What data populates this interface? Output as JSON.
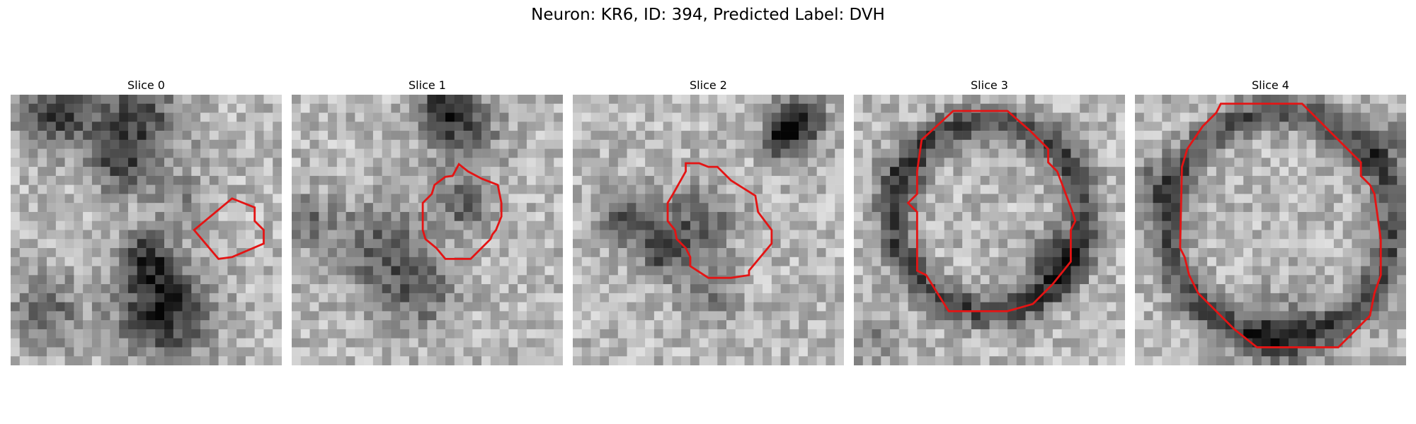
{
  "figure": {
    "title": "Neuron: KR6, ID: 394, Predicted Label: DVH"
  },
  "panels": [
    {
      "title": "Slice 0",
      "contour_color": "#e41414"
    },
    {
      "title": "Slice 1",
      "contour_color": "#e41414"
    },
    {
      "title": "Slice 2",
      "contour_color": "#e41414"
    },
    {
      "title": "Slice 3",
      "contour_color": "#e41414"
    },
    {
      "title": "Slice 4",
      "contour_color": "#e41414"
    }
  ]
}
